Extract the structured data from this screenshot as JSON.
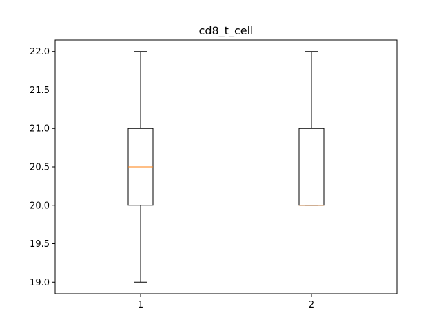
{
  "chart_data": {
    "type": "box",
    "title": "cd8_t_cell",
    "xlabel": "",
    "ylabel": "",
    "categories": [
      "1",
      "2"
    ],
    "boxes": [
      {
        "category": "1",
        "whisker_low": 19.0,
        "q1": 20.0,
        "median": 20.5,
        "q3": 21.0,
        "whisker_high": 22.0
      },
      {
        "category": "2",
        "whisker_low": 20.0,
        "q1": 20.0,
        "median": 20.0,
        "q3": 21.0,
        "whisker_high": 22.0
      }
    ],
    "ylim": [
      18.85,
      22.15
    ],
    "yticks": [
      19.0,
      19.5,
      20.0,
      20.5,
      21.0,
      21.5,
      22.0
    ],
    "ytick_labels": [
      "19.0",
      "19.5",
      "20.0",
      "20.5",
      "21.0",
      "21.5",
      "22.0"
    ],
    "grid": false,
    "colors": {
      "box": "#000000",
      "median": "#ff7f0e",
      "axes": "#000000"
    }
  }
}
